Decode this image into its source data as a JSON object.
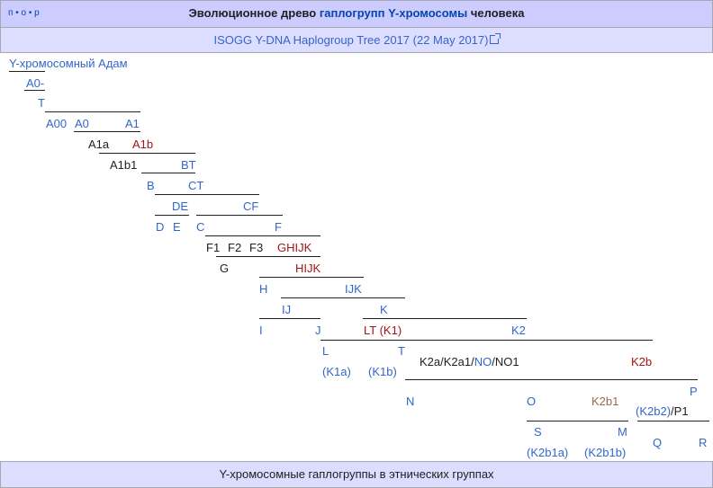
{
  "navbox": {
    "vte": [
      "п",
      "о",
      "р"
    ],
    "title_prefix": "Эволюционное древо ",
    "title_link": "гаплогрупп Y-хромосомы",
    "title_suffix": " человека",
    "subtitle_link": "ISOGG Y-DNA Haplogroup Tree 2017 (22 May 2017)",
    "bottom_link": "Y-хромосомные гаплогруппы в этнических группах"
  },
  "tree": {
    "root": "Y-хромосомный Адам",
    "A0-": "A0-",
    "T0": "T",
    "A00": "A00",
    "A0": "A0",
    "A1": "A1",
    "A1a": "A1a",
    "A1b": "A1b",
    "A1b1": "A1b1",
    "BT": "BT",
    "B": "B",
    "CT": "CT",
    "DE": "DE",
    "CF": "CF",
    "D": "D",
    "E": "E",
    "C": "C",
    "F": "F",
    "F1": "F1",
    "F2": "F2",
    "F3": "F3",
    "GHIJK": "GHIJK",
    "G": "G",
    "HIJK": "HIJK",
    "H": "H",
    "IJK": "IJK",
    "IJ": "IJ",
    "K": "K",
    "I": "I",
    "J": "J",
    "LT": "LT (K1)",
    "K2": "K2",
    "L": "L",
    "T": "T",
    "K1a": "(K1a)",
    "K1b": "(K1b)",
    "K2a": "K2a/K2a1/",
    "NO": "NO",
    "NO1": "/NO1",
    "K2b": "K2b",
    "N": "N",
    "O": "O",
    "K2b1": "K2b1",
    "P": "P",
    "K2b2": "(K2b2)",
    "P1": "/P1",
    "S": "S",
    "M": "M",
    "Q": "Q",
    "R": "R",
    "K2b1a": "(K2b1a)",
    "K2b1b": "(K2b1b)"
  },
  "colors": {
    "link": "#3366cc",
    "redlink": "#a31515",
    "visited": "#9a6a4a",
    "header_bg": "#ccccff",
    "subheader_bg": "#ddddff"
  }
}
